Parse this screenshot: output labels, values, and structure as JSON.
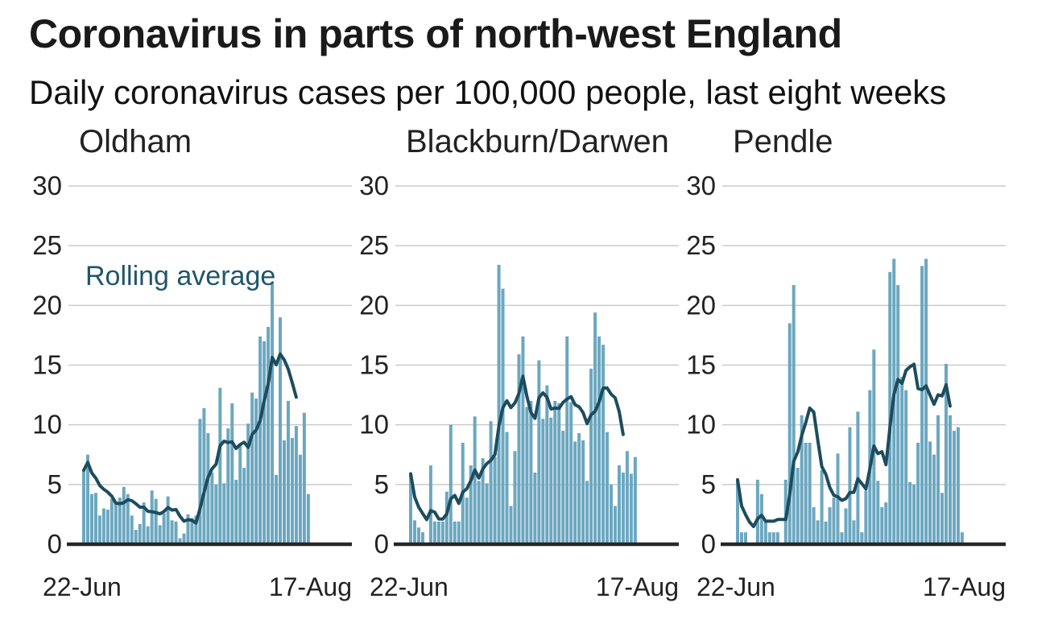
{
  "header": {
    "title": "Coronavirus in parts of north-west England",
    "subtitle": "Daily coronavirus cases per 100,000 people, last eight weeks"
  },
  "colors": {
    "bar": "#6ca7c0",
    "line": "#1d4c5e",
    "annotation": "#1f566b",
    "grid": "#cbcbcb",
    "axis": "#262626",
    "tick_text": "#222222"
  },
  "axis": {
    "y_ticks": [
      0,
      5,
      10,
      15,
      20,
      25,
      30
    ],
    "y_max": 30,
    "x_tick_labels": [
      "22-Jun",
      "17-Aug"
    ],
    "n_days": 57
  },
  "rolling_average": {
    "label": "Rolling average",
    "window_days": 7,
    "method": "trailing mean of daily values",
    "drawn_through_day": 54,
    "labelled_panel": 0
  },
  "chart_data": [
    {
      "type": "bar+line",
      "title": "Oldham",
      "ylim": [
        0,
        30
      ],
      "y_ticks": [
        0,
        5,
        10,
        15,
        20,
        25,
        30
      ],
      "x_start_label": "22-Jun",
      "x_end_label": "17-Aug",
      "bar_series_name": "Daily cases per 100,000",
      "line_series_name": "Rolling average",
      "values": [
        6.2,
        7.5,
        4.2,
        4.3,
        2.4,
        3.0,
        2.9,
        3.8,
        3.5,
        3.9,
        4.8,
        4.2,
        2.4,
        1.2,
        1.7,
        3.5,
        1.5,
        4.5,
        3.8,
        1.6,
        2.6,
        4.0,
        2.0,
        1.9,
        0.5,
        0.9,
        2.5,
        2.2,
        2.4,
        10.5,
        11.4,
        9.3,
        6.0,
        5.0,
        13.1,
        5.1,
        9.7,
        11.8,
        5.4,
        8.3,
        6.4,
        10.1,
        12.7,
        12.2,
        17.4,
        17.0,
        18.2,
        21.9,
        5.8,
        19.0,
        8.7,
        12.0,
        8.9,
        9.9,
        7.5,
        11.0,
        4.2
      ],
      "annotation": "Rolling average"
    },
    {
      "type": "bar+line",
      "title": "Blackburn/Darwen",
      "ylim": [
        0,
        30
      ],
      "y_ticks": [
        0,
        5,
        10,
        15,
        20,
        25,
        30
      ],
      "x_start_label": "22-Jun",
      "x_end_label": "17-Aug",
      "bar_series_name": "Daily cases per 100,000",
      "line_series_name": "Rolling average",
      "values": [
        5.9,
        2.0,
        1.4,
        1.0,
        0,
        6.6,
        1.9,
        1.9,
        1.9,
        4.4,
        10.0,
        1.9,
        1.9,
        8.5,
        3.9,
        6.6,
        10.7,
        5.3,
        7.2,
        5.1,
        10.3,
        7.3,
        23.4,
        21.4,
        9.4,
        3.2,
        7.8,
        15.9,
        17.4,
        11.5,
        12.0,
        6.0,
        15.4,
        10.5,
        13.3,
        10.6,
        12.0,
        11.8,
        9.5,
        17.4,
        11.9,
        8.6,
        9.3,
        8.7,
        5.3,
        14.7,
        19.4,
        17.4,
        16.7,
        9.4,
        5.0,
        3.2,
        6.6,
        6.0,
        7.8,
        5.9,
        7.3
      ]
    },
    {
      "type": "bar+line",
      "title": "Pendle",
      "ylim": [
        0,
        30
      ],
      "y_ticks": [
        0,
        5,
        10,
        15,
        20,
        25,
        30
      ],
      "x_start_label": "22-Jun",
      "x_end_label": "17-Aug",
      "bar_series_name": "Daily cases per 100,000",
      "line_series_name": "Rolling average",
      "values": [
        5.4,
        1.0,
        1.0,
        0,
        0,
        5.4,
        4.2,
        1.9,
        1.0,
        1.0,
        1.0,
        0,
        5.4,
        18.5,
        21.7,
        6.4,
        10.8,
        8.5,
        8.5,
        3.1,
        2.0,
        6.2,
        1.9,
        3.1,
        3.9,
        7.6,
        1.0,
        3.0,
        9.8,
        2.0,
        11.1,
        1.0,
        4.5,
        12.9,
        16.3,
        5.3,
        3.1,
        3.5,
        22.8,
        23.9,
        21.7,
        14.0,
        12.9,
        5.2,
        5.0,
        8.5,
        23.3,
        23.9,
        8.6,
        7.5,
        10.8,
        4.3,
        15.1,
        10.8,
        9.5,
        9.8,
        1.0
      ]
    }
  ]
}
